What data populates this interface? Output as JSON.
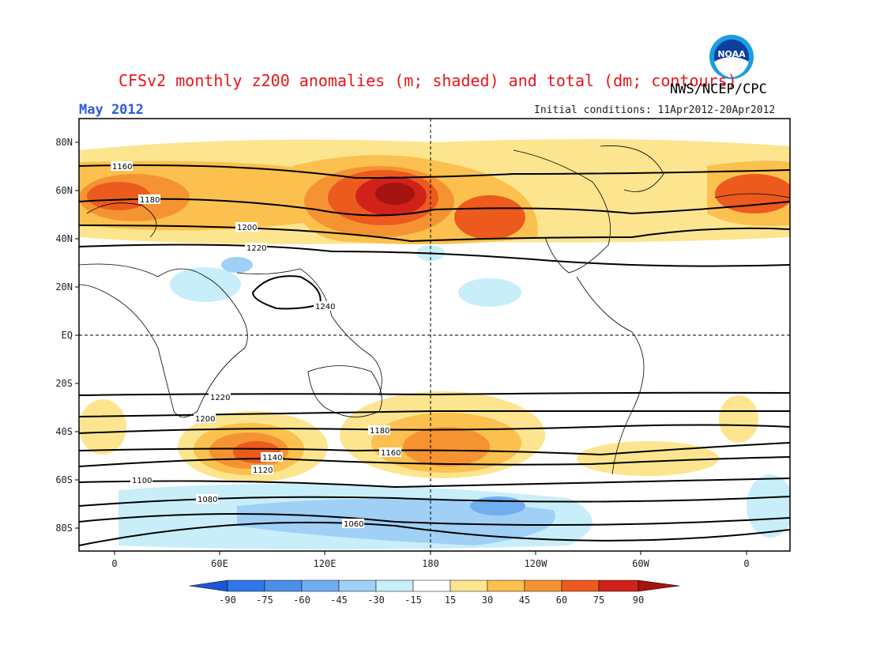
{
  "header": {
    "title": "CFSv2 monthly z200 anomalies (m; shaded) and total (dm; contours)",
    "agency": "NWS/NCEP/CPC",
    "month": "May 2012",
    "initial_conditions": "Initial conditions: 11Apr2012-20Apr2012",
    "logo_text": "NOAA"
  },
  "axes": {
    "lat_labels": [
      "80N",
      "60N",
      "40N",
      "20N",
      "EQ",
      "20S",
      "40S",
      "60S",
      "80S"
    ],
    "lon_labels": [
      "0",
      "60E",
      "120E",
      "180",
      "120W",
      "60W",
      "0"
    ]
  },
  "contour_labels": [
    "1160",
    "1180",
    "1200",
    "1220",
    "1240",
    "1220",
    "1200",
    "1180",
    "1160",
    "1140",
    "1120",
    "1100",
    "1080",
    "1060"
  ],
  "colorbar": {
    "ticks": [
      "-90",
      "-75",
      "-60",
      "-45",
      "-30",
      "-15",
      "15",
      "30",
      "45",
      "60",
      "75",
      "90"
    ],
    "colors": [
      "#1a56d6",
      "#2e78e8",
      "#4a90e8",
      "#70aef0",
      "#a0d0f6",
      "#c8eefa",
      "#ffffff",
      "#fde58f",
      "#fbc04e",
      "#f59332",
      "#ed5a1e",
      "#d0221a",
      "#a41410"
    ]
  }
}
